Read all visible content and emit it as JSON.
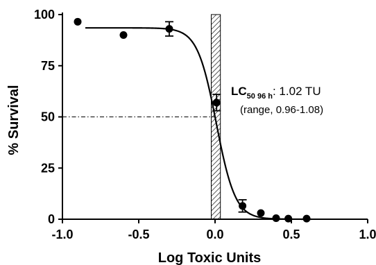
{
  "chart_data": {
    "type": "scatter",
    "title": "",
    "xlabel": "Log Toxic Units",
    "ylabel": "% Survival",
    "xlim": [
      -1.0,
      1.0
    ],
    "ylim": [
      0,
      100
    ],
    "x_ticks": [
      "-1.0",
      "-0.5",
      "0.0",
      "0.5",
      "1.0"
    ],
    "y_ticks": [
      "0",
      "25",
      "50",
      "75",
      "100"
    ],
    "grid": false,
    "series": [
      {
        "points": [
          {
            "x": -0.9,
            "y": 96.5
          },
          {
            "x": -0.6,
            "y": 90
          },
          {
            "x": -0.3,
            "y": 93,
            "err": 3.5
          },
          {
            "x": 0.01,
            "y": 57,
            "err": 4
          },
          {
            "x": 0.18,
            "y": 6.5,
            "err": 3
          },
          {
            "x": 0.3,
            "y": 3
          },
          {
            "x": 0.4,
            "y": 0.5
          },
          {
            "x": 0.48,
            "y": 0.3
          },
          {
            "x": 0.6,
            "y": 0.3
          }
        ]
      }
    ],
    "fit_curve": {
      "model": "sigmoid",
      "top": 93.5,
      "bottom": 0,
      "logLC50": 0.0086,
      "hill_slope": 7
    },
    "lc50_band": {
      "x_from": -0.025,
      "x_to": 0.035
    },
    "reference_line": {
      "y": 50,
      "x_from": -1.0,
      "x_to": 0.0,
      "style": "dash-dot"
    },
    "annotation": {
      "label": "LC",
      "subscript": "50 96 h",
      "value": ": 1.02 TU",
      "range_text": "(range, 0.96-1.08)"
    }
  }
}
